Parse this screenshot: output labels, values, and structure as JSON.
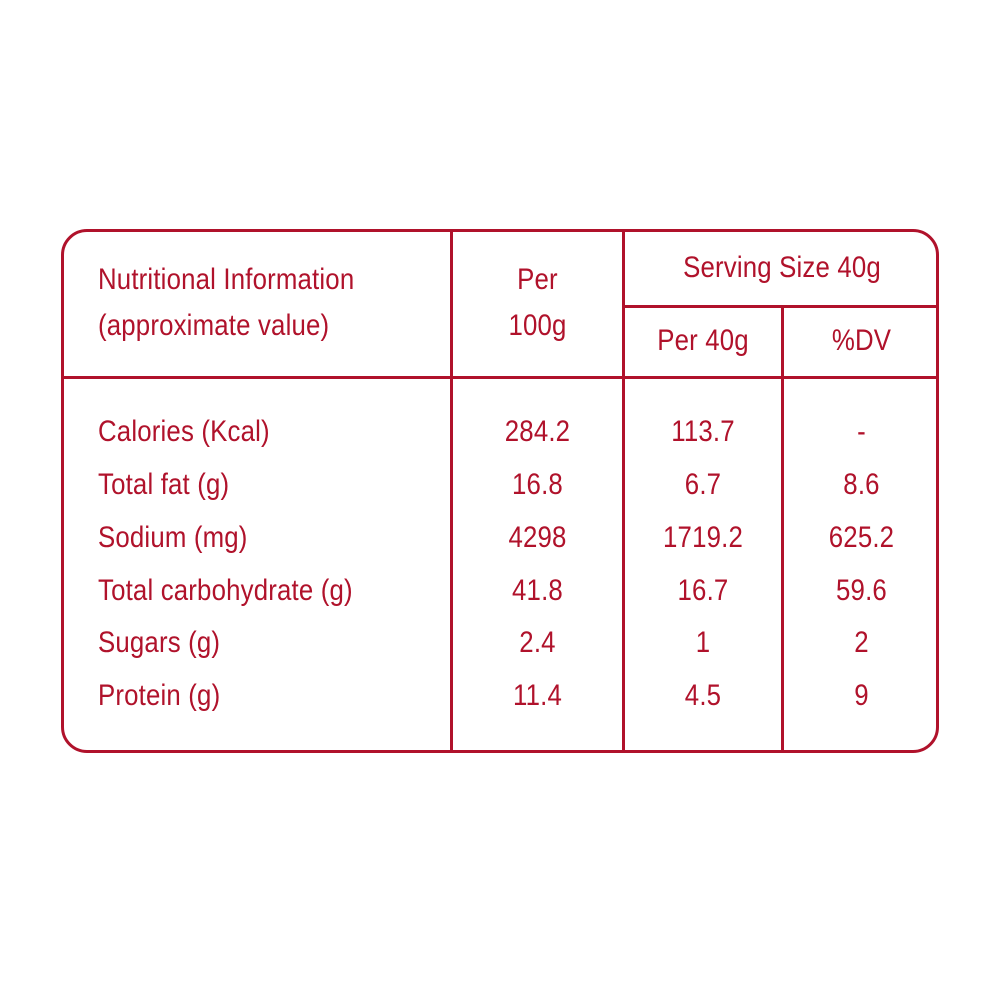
{
  "header": {
    "title_line1": "Nutritional Information",
    "title_line2": "(approximate value)",
    "per100_line1": "Per",
    "per100_line2": "100g",
    "serving_size": "Serving Size 40g",
    "per40": "Per 40g",
    "dv": "%DV"
  },
  "rows": [
    {
      "label": "Calories (Kcal)",
      "per100": "284.2",
      "per40": "113.7",
      "dv": "-"
    },
    {
      "label": "Total fat (g)",
      "per100": "16.8",
      "per40": "6.7",
      "dv": "8.6"
    },
    {
      "label": "Sodium (mg)",
      "per100": "4298",
      "per40": "1719.2",
      "dv": "625.2"
    },
    {
      "label": "Total carbohydrate (g)",
      "per100": "41.8",
      "per40": "16.7",
      "dv": "59.6"
    },
    {
      "label": "Sugars (g)",
      "per100": "2.4",
      "per40": "1",
      "dv": "2"
    },
    {
      "label": "Protein (g)",
      "per100": "11.4",
      "per40": "4.5",
      "dv": "9"
    }
  ],
  "colors": {
    "accent": "#b0122b",
    "background": "#ffffff"
  }
}
